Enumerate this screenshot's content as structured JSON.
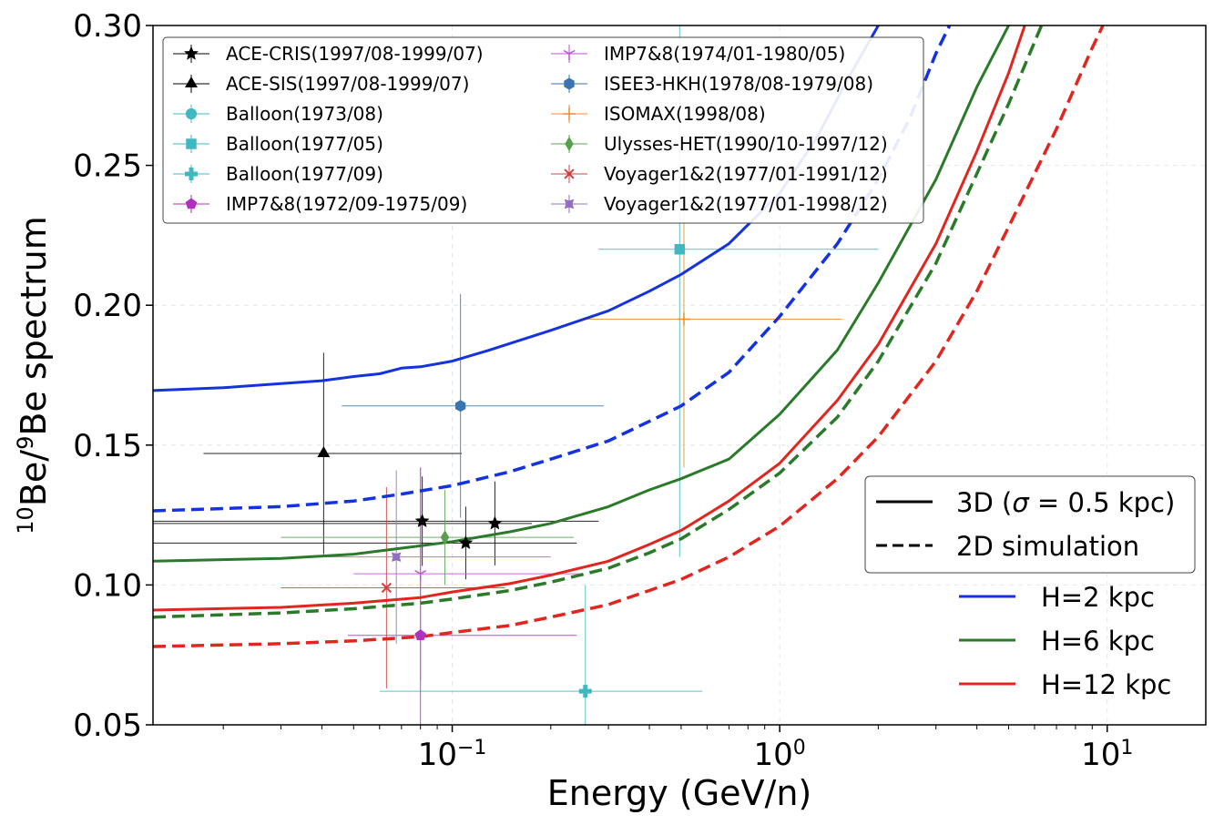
{
  "chart_data": {
    "type": "line",
    "xlabel": "Energy (GeV/n)",
    "ylabel_parts": {
      "sup1": "10",
      "base1": "Be/",
      "sup2": "9",
      "base2": "Be spectrum"
    },
    "xscale": "log",
    "xlim": [
      0.0122,
      20.0
    ],
    "ylim": [
      0.05,
      0.3
    ],
    "grid": true,
    "xticks": [
      {
        "value": 0.1,
        "base": "10",
        "exp": "−1"
      },
      {
        "value": 1,
        "base": "10",
        "exp": "0"
      },
      {
        "value": 10,
        "base": "10",
        "exp": "1"
      }
    ],
    "yticks": [
      {
        "value": 0.05,
        "label": "0.05"
      },
      {
        "value": 0.1,
        "label": "0.10"
      },
      {
        "value": 0.15,
        "label": "0.15"
      },
      {
        "value": 0.2,
        "label": "0.20"
      },
      {
        "value": 0.25,
        "label": "0.25"
      },
      {
        "value": 0.3,
        "label": "0.30"
      }
    ],
    "model_series": [
      {
        "name": "H=2 kpc",
        "model": "3D",
        "color": "#1432e0",
        "dash": false,
        "points": [
          [
            0.0122,
            0.1695
          ],
          [
            0.02,
            0.1705
          ],
          [
            0.03,
            0.172
          ],
          [
            0.04,
            0.173
          ],
          [
            0.05,
            0.1745
          ],
          [
            0.06,
            0.1755
          ],
          [
            0.07,
            0.1775
          ],
          [
            0.08,
            0.178
          ],
          [
            0.1,
            0.18
          ],
          [
            0.13,
            0.184
          ],
          [
            0.2,
            0.191
          ],
          [
            0.3,
            0.198
          ],
          [
            0.4,
            0.205
          ],
          [
            0.5,
            0.211
          ],
          [
            0.7,
            0.222
          ],
          [
            1.0,
            0.24
          ],
          [
            1.3,
            0.26
          ],
          [
            1.6,
            0.28
          ],
          [
            2.0,
            0.3
          ]
        ]
      },
      {
        "name": "H=2 kpc",
        "model": "2D",
        "color": "#1432e0",
        "dash": true,
        "points": [
          [
            0.0122,
            0.1265
          ],
          [
            0.03,
            0.128
          ],
          [
            0.05,
            0.13
          ],
          [
            0.07,
            0.1325
          ],
          [
            0.1,
            0.1355
          ],
          [
            0.15,
            0.1405
          ],
          [
            0.2,
            0.145
          ],
          [
            0.3,
            0.1515
          ],
          [
            0.4,
            0.1585
          ],
          [
            0.5,
            0.164
          ],
          [
            0.7,
            0.176
          ],
          [
            1.0,
            0.196
          ],
          [
            1.5,
            0.222
          ],
          [
            2.0,
            0.245
          ],
          [
            2.5,
            0.267
          ],
          [
            3.0,
            0.29
          ],
          [
            3.3,
            0.3
          ]
        ]
      },
      {
        "name": "H=6 kpc",
        "model": "3D",
        "color": "#2a7a2a",
        "dash": false,
        "points": [
          [
            0.0122,
            0.1085
          ],
          [
            0.03,
            0.1095
          ],
          [
            0.05,
            0.111
          ],
          [
            0.08,
            0.114
          ],
          [
            0.1,
            0.1155
          ],
          [
            0.15,
            0.119
          ],
          [
            0.2,
            0.122
          ],
          [
            0.3,
            0.128
          ],
          [
            0.4,
            0.134
          ],
          [
            0.5,
            0.138
          ],
          [
            0.7,
            0.145
          ],
          [
            1.0,
            0.161
          ],
          [
            1.5,
            0.184
          ],
          [
            2.0,
            0.208
          ],
          [
            3.0,
            0.245
          ],
          [
            4.0,
            0.278
          ],
          [
            5.0,
            0.3
          ]
        ]
      },
      {
        "name": "H=6 kpc",
        "model": "2D",
        "color": "#2a7a2a",
        "dash": true,
        "points": [
          [
            0.0122,
            0.0885
          ],
          [
            0.03,
            0.09
          ],
          [
            0.05,
            0.0915
          ],
          [
            0.08,
            0.0935
          ],
          [
            0.1,
            0.095
          ],
          [
            0.15,
            0.098
          ],
          [
            0.2,
            0.101
          ],
          [
            0.3,
            0.106
          ],
          [
            0.4,
            0.1115
          ],
          [
            0.5,
            0.1165
          ],
          [
            0.7,
            0.127
          ],
          [
            1.0,
            0.14
          ],
          [
            1.5,
            0.16
          ],
          [
            2.0,
            0.18
          ],
          [
            3.0,
            0.215
          ],
          [
            4.0,
            0.247
          ],
          [
            5.0,
            0.272
          ],
          [
            6.3,
            0.3
          ]
        ]
      },
      {
        "name": "H=12 kpc",
        "model": "3D",
        "color": "#e0261f",
        "dash": false,
        "points": [
          [
            0.0122,
            0.091
          ],
          [
            0.03,
            0.092
          ],
          [
            0.05,
            0.0935
          ],
          [
            0.08,
            0.0955
          ],
          [
            0.1,
            0.0975
          ],
          [
            0.15,
            0.1005
          ],
          [
            0.2,
            0.1035
          ],
          [
            0.3,
            0.1085
          ],
          [
            0.4,
            0.1145
          ],
          [
            0.5,
            0.1195
          ],
          [
            0.7,
            0.13
          ],
          [
            1.0,
            0.1435
          ],
          [
            1.5,
            0.166
          ],
          [
            2.0,
            0.186
          ],
          [
            3.0,
            0.222
          ],
          [
            4.0,
            0.255
          ],
          [
            5.0,
            0.283
          ],
          [
            5.6,
            0.3
          ]
        ]
      },
      {
        "name": "H=12 kpc",
        "model": "2D",
        "color": "#e0261f",
        "dash": true,
        "points": [
          [
            0.0122,
            0.078
          ],
          [
            0.03,
            0.079
          ],
          [
            0.05,
            0.08
          ],
          [
            0.08,
            0.0815
          ],
          [
            0.1,
            0.083
          ],
          [
            0.15,
            0.0855
          ],
          [
            0.2,
            0.0885
          ],
          [
            0.3,
            0.093
          ],
          [
            0.4,
            0.098
          ],
          [
            0.5,
            0.102
          ],
          [
            0.7,
            0.11
          ],
          [
            1.0,
            0.121
          ],
          [
            1.5,
            0.138
          ],
          [
            2.0,
            0.153
          ],
          [
            3.0,
            0.18
          ],
          [
            4.0,
            0.205
          ],
          [
            5.0,
            0.228
          ],
          [
            7.0,
            0.263
          ],
          [
            9.0,
            0.292
          ],
          [
            9.7,
            0.3
          ]
        ]
      }
    ],
    "data_series": [
      {
        "name": "ACE-CRIS(1997/08-1999/07)",
        "color": "#000000",
        "marker": "star",
        "points": [
          {
            "x": 0.081,
            "y": 0.1228,
            "xerr": [
              0.0122,
              0.28
            ],
            "yerr": [
              0.016,
              0.016
            ]
          },
          {
            "x": 0.11,
            "y": 0.115,
            "xerr": [
              0.0122,
              0.24
            ],
            "yerr": [
              0.013,
              0.013
            ]
          },
          {
            "x": 0.135,
            "y": 0.122,
            "xerr": [
              0.0122,
              0.175
            ],
            "yerr": [
              0.015,
              0.015
            ]
          }
        ]
      },
      {
        "name": "ACE-SIS(1997/08-1999/07)",
        "color": "#000000",
        "marker": "triangle",
        "points": [
          {
            "x": 0.0405,
            "y": 0.147,
            "xerr": [
              0.0174,
              0.107
            ],
            "yerr": [
              0.036,
              0.036
            ]
          }
        ]
      },
      {
        "name": "Balloon(1973/08)",
        "color": "#40b8c0",
        "marker": "circle",
        "points": []
      },
      {
        "name": "Balloon(1977/05)",
        "color": "#40b8c0",
        "marker": "square",
        "points": [
          {
            "x": 0.495,
            "y": 0.22,
            "xerr": [
              0.28,
              2.0
            ],
            "yerr": [
              0.11,
              0.11
            ]
          }
        ]
      },
      {
        "name": "Balloon(1977/09)",
        "color": "#40b8c0",
        "marker": "plus",
        "points": [
          {
            "x": 0.255,
            "y": 0.062,
            "xerr": [
              0.06,
              0.58
            ],
            "yerr": [
              0.038,
              0.038
            ]
          }
        ]
      },
      {
        "name": "IMP7&8(1972/09-1975/09)",
        "color": "#b030c0",
        "marker": "pentagon",
        "points": [
          {
            "x": 0.08,
            "y": 0.082,
            "xerr": [
              0.048,
              0.24
            ],
            "yerr": [
              0.06,
              0.06
            ]
          }
        ]
      },
      {
        "name": "IMP7&8(1974/01-1980/05)",
        "color": "#c050d8",
        "marker": "tri-down",
        "points": [
          {
            "x": 0.08,
            "y": 0.104,
            "xerr": [
              0.05,
              0.25
            ],
            "yerr": [
              0.038,
              0.038
            ]
          }
        ]
      },
      {
        "name": "ISEE3-HKH(1978/08-1979/08)",
        "color": "#3a75b0",
        "marker": "hexagon",
        "points": [
          {
            "x": 0.106,
            "y": 0.164,
            "xerr": [
              0.046,
              0.29
            ],
            "yerr": [
              0.04,
              0.04
            ]
          }
        ]
      },
      {
        "name": "ISOMAX(1998/08)",
        "color": "#f08a28",
        "marker": "plus-thin",
        "points": [
          {
            "x": 0.51,
            "y": 0.195,
            "xerr": [
              0.25,
              1.55
            ],
            "yerr": [
              0.053,
              0.053
            ]
          }
        ]
      },
      {
        "name": "Ulysses-HET(1990/10-1997/12)",
        "color": "#58a050",
        "marker": "diamond",
        "points": [
          {
            "x": 0.095,
            "y": 0.117,
            "xerr": [
              0.03,
              0.235
            ],
            "yerr": [
              0.017,
              0.017
            ]
          }
        ]
      },
      {
        "name": "Voyager1&2(1977/01-1991/12)",
        "color": "#d04040",
        "marker": "x",
        "points": [
          {
            "x": 0.063,
            "y": 0.099,
            "xerr": [
              0.03,
              0.145
            ],
            "yerr": [
              0.036,
              0.036
            ]
          }
        ]
      },
      {
        "name": "Voyager1&2(1977/01-1998/12)",
        "color": "#9070c0",
        "marker": "star-x",
        "points": [
          {
            "x": 0.0675,
            "y": 0.11,
            "xerr": [
              0.033,
              0.2
            ],
            "yerr": [
              0.031,
              0.031
            ]
          }
        ]
      }
    ],
    "legend_left": [
      "ACE-CRIS(1997/08-1999/07)",
      "ACE-SIS(1997/08-1999/07)",
      "Balloon(1973/08)",
      "Balloon(1977/05)",
      "Balloon(1977/09)",
      "IMP7&8(1972/09-1975/09)"
    ],
    "legend_right": [
      "IMP7&8(1974/01-1980/05)",
      "ISEE3-HKH(1978/08-1979/08)",
      "ISOMAX(1998/08)",
      "Ulysses-HET(1990/10-1997/12)",
      "Voyager1&2(1977/01-1991/12)",
      "Voyager1&2(1977/01-1998/12)"
    ],
    "model_legend": {
      "solid_prefix": "3D (",
      "solid_sigma": "σ",
      "solid_suffix": " = 0.5 kpc)",
      "dashed": "2D simulation"
    },
    "height_legend": [
      {
        "label": "H=2 kpc",
        "color": "#1432e0"
      },
      {
        "label": "H=6 kpc",
        "color": "#2a7a2a"
      },
      {
        "label": "H=12 kpc",
        "color": "#e0261f"
      }
    ]
  }
}
